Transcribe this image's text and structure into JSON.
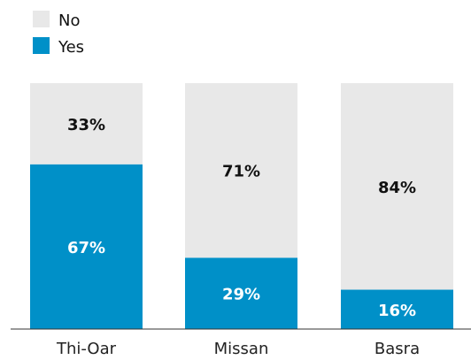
{
  "chart_data": {
    "type": "bar",
    "stacked": true,
    "unit": "%",
    "categories": [
      "Thi-Oar",
      "Missan",
      "Basra"
    ],
    "series": [
      {
        "name": "Yes",
        "values": [
          67,
          29,
          16
        ],
        "color": "#0090C8"
      },
      {
        "name": "No",
        "values": [
          33,
          71,
          84
        ],
        "color": "#E8E8E8"
      }
    ],
    "data_labels": {
      "Yes": [
        "67%",
        "29%",
        "16%"
      ],
      "No": [
        "33%",
        "71%",
        "84%"
      ]
    },
    "legend": {
      "position": "top-left",
      "items": [
        {
          "label": "No",
          "color": "#E8E8E8"
        },
        {
          "label": "Yes",
          "color": "#0090C8"
        }
      ]
    },
    "ylim": [
      0,
      100
    ],
    "grid": false,
    "title": "",
    "xlabel": "",
    "ylabel": ""
  }
}
